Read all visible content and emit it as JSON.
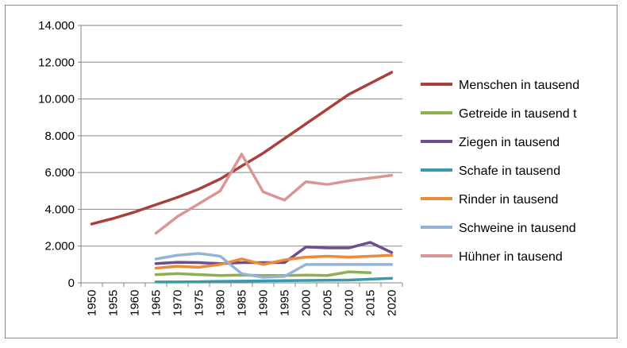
{
  "chart_data": {
    "type": "line",
    "title": "",
    "xlabel": "",
    "ylabel": "",
    "ylim": [
      0,
      14000
    ],
    "yticks": [
      "0",
      "2.000",
      "4.000",
      "6.000",
      "8.000",
      "10.000",
      "12.000",
      "14.000"
    ],
    "ytick_values": [
      0,
      2000,
      4000,
      6000,
      8000,
      10000,
      12000,
      14000
    ],
    "categories": [
      "1950",
      "1955",
      "1960",
      "1965",
      "1970",
      "1975",
      "1980",
      "1985",
      "1990",
      "1995",
      "2000",
      "2005",
      "2010",
      "2015",
      "2020"
    ],
    "grid": "horizontal",
    "legend_position": "right",
    "series": [
      {
        "name": "Menschen in tausend",
        "color": "#A9403D",
        "values": [
          3200,
          3500,
          3850,
          4250,
          4650,
          5100,
          5650,
          6350,
          7050,
          7850,
          8650,
          9450,
          10250,
          10850,
          11450
        ]
      },
      {
        "name": "Getreide in tausend t",
        "color": "#8FB04F",
        "values": [
          null,
          null,
          null,
          450,
          500,
          450,
          400,
          420,
          400,
          400,
          420,
          400,
          600,
          550,
          null
        ]
      },
      {
        "name": "Ziegen in tausend",
        "color": "#6C4F8F",
        "values": [
          null,
          null,
          null,
          1050,
          1120,
          1100,
          1050,
          1100,
          1100,
          1100,
          1950,
          1900,
          1900,
          2200,
          1650
        ]
      },
      {
        "name": "Schafe in tausend",
        "color": "#3A9AAD",
        "values": [
          null,
          null,
          null,
          50,
          50,
          60,
          80,
          90,
          110,
          120,
          130,
          140,
          150,
          200,
          250
        ]
      },
      {
        "name": "Rinder in tausend",
        "color": "#EC8A3A",
        "values": [
          null,
          null,
          null,
          800,
          900,
          850,
          1000,
          1300,
          1000,
          1250,
          1400,
          1450,
          1400,
          1450,
          1500
        ]
      },
      {
        "name": "Schweine in tausend",
        "color": "#95B3D7",
        "values": [
          null,
          null,
          null,
          1300,
          1500,
          1600,
          1450,
          500,
          300,
          350,
          1000,
          1000,
          1000,
          1000,
          1000
        ]
      },
      {
        "name": "Hühner in tausend",
        "color": "#D99694",
        "values": [
          null,
          null,
          null,
          2700,
          3600,
          4300,
          5000,
          7000,
          4950,
          4500,
          5500,
          5350,
          5550,
          5700,
          5850
        ]
      }
    ]
  }
}
